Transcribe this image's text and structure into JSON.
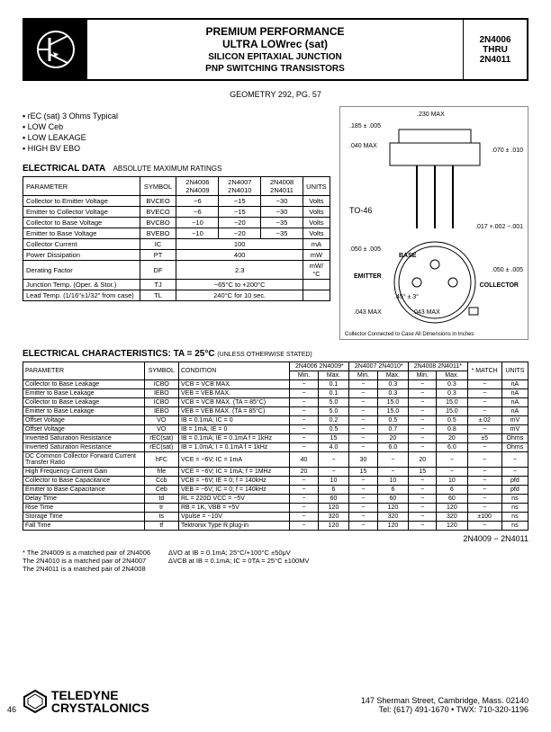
{
  "header": {
    "title_l1": "PREMIUM PERFORMANCE",
    "title_l2": "ULTRA LOWrec (sat)",
    "title_l3a": "SILICON EPITAXIAL JUNCTION",
    "title_l3b": "PNP SWITCHING TRANSISTORS",
    "part_from": "2N4006",
    "part_thru": "THRU",
    "part_to": "2N4011"
  },
  "geometry": "GEOMETRY 292, PG. 57",
  "bullets": [
    "rEC (sat) 3 Ohms Typical",
    "LOW Ceb",
    "LOW LEAKAGE",
    "HIGH BV EBO"
  ],
  "max_ratings": {
    "title": "ELECTRICAL DATA",
    "subtitle": "ABSOLUTE MAXIMUM RATINGS",
    "cols": [
      "PARAMETER",
      "SYMBOL",
      "2N4006 2N4009",
      "2N4007 2N4010",
      "2N4008 2N4011",
      "UNITS"
    ],
    "rows": [
      [
        "Collector to Emitter Voltage",
        "BVCEO",
        "−6",
        "−15",
        "−30",
        "Volts"
      ],
      [
        "Emitter to Collector Voltage",
        "BVECO",
        "−6",
        "−15",
        "−30",
        "Volts"
      ],
      [
        "Collector to Base Voltage",
        "BVCBO",
        "−10",
        "−20",
        "−35",
        "Volts"
      ],
      [
        "Emitter to Base Voltage",
        "BVEBO",
        "−10",
        "−20",
        "−35",
        "Volts"
      ],
      [
        "Collector Current",
        "IC",
        "100",
        "",
        "",
        "mA"
      ],
      [
        "Power Dissipation",
        "PT",
        "400",
        "",
        "",
        "mW"
      ],
      [
        "Derating Factor",
        "DF",
        "2.3",
        "",
        "",
        "mW/°C"
      ],
      [
        "Junction Temp. (Oper. & Stor.)",
        "TJ",
        "−65°C to +200°C",
        "",
        "",
        ""
      ],
      [
        "Lead Temp. (1/16\"±1/32\" from case)",
        "TL",
        "240°C for 10 sec.",
        "",
        "",
        ""
      ]
    ]
  },
  "package": {
    "label": "TO-46",
    "dims": [
      ".230 MAX",
      ".185 ± .005",
      ".040 MAX",
      ".070 ± .010",
      ".017 +.002 −.001",
      ".050 ± .005",
      "BASE",
      "EMITTER",
      "COLLECTOR",
      ".043 MAX",
      ".043 MAX",
      ".45° ± 3°",
      ".050 ± .005"
    ],
    "note": "Collector Connected to Case    All Dimensions in Inches"
  },
  "characteristics": {
    "title": "ELECTRICAL CHARACTERISTICS: TA = 25°C",
    "title_note": "(UNLESS OTHERWISE STATED)",
    "group_cols": [
      "2N4006 2N4009*",
      "2N4007 2N4010*",
      "2N4008 2N4011*"
    ],
    "head": [
      "PARAMETER",
      "SYMBOL",
      "CONDITION",
      "Min.",
      "Max.",
      "Min.",
      "Max.",
      "Min.",
      "Max.",
      "* MATCH",
      "UNITS"
    ],
    "rows": [
      [
        "Collector to Base Leakage",
        "ICBO",
        "VCB = VCB MAX.",
        "−",
        "0.1",
        "−",
        "0.3",
        "−",
        "0.3",
        "−",
        "nA"
      ],
      [
        "Emitter to Base Leakage",
        "IEBO",
        "VEB = VEB MAX.",
        "−",
        "0.1",
        "−",
        "0.3",
        "−",
        "0.3",
        "−",
        "nA"
      ],
      [
        "Collector to Base Leakage",
        "ICBO",
        "VCB = VCB MAX. (TA = 85°C)",
        "−",
        "5.0",
        "−",
        "15.0",
        "−",
        "15.0",
        "−",
        "nA"
      ],
      [
        "Emitter to Base Leakage",
        "IEBO",
        "VEB = VEB MAX. (TA = 85°C)",
        "−",
        "5.0",
        "−",
        "15.0",
        "−",
        "15.0",
        "−",
        "nA"
      ],
      [
        "Offset Voltage",
        "VO",
        "IB = 0.1mA; IC = 0",
        "−",
        "0.2",
        "−",
        "0.5",
        "−",
        "0.5",
        "±.02",
        "mV"
      ],
      [
        "Offset Voltage",
        "VO",
        "IB = 1mA; IE = 0",
        "−",
        "0.5",
        "−",
        "0.7",
        "−",
        "0.8",
        "−",
        "mV"
      ],
      [
        "Inverted Saturation Resistance",
        "rEC(sat)",
        "IB = 0.1mA; IE = 0.1mA f = 1kHz",
        "−",
        "15",
        "−",
        "20",
        "−",
        "20",
        "±5",
        "Ohms"
      ],
      [
        "Inverted Saturation Resistance",
        "rEC(sat)",
        "IB = 1.0mA; I = 0.1mA f = 1kHz",
        "−",
        "4.0",
        "−",
        "6.0",
        "−",
        "6.0",
        "−",
        "Ohms"
      ],
      [
        "DC Common Collector Forward Current Transfer Ratio",
        "hFC",
        "VCE = −6V; IC = 1mA",
        "40",
        "−",
        "30",
        "−",
        "20",
        "−",
        "−",
        "−"
      ],
      [
        "High Frequency Current Gain",
        "hfe",
        "VCE = −6V; IC = 1mA; f = 1MHz",
        "20",
        "−",
        "15",
        "−",
        "15",
        "−",
        "−",
        "−"
      ],
      [
        "Collector to Base Capacitance",
        "Ccb",
        "VCB = −6V; IE = 0; f = 140kHz",
        "−",
        "10",
        "−",
        "10",
        "−",
        "10",
        "−",
        "pfd"
      ],
      [
        "Emitter to Base Capacitance",
        "Ceb",
        "VEB = −6V; IC = 0; f = 140kHz",
        "−",
        "6",
        "−",
        "6",
        "−",
        "6",
        "−",
        "pfd"
      ],
      [
        "Delay Time",
        "td",
        "RL = 220Ω    VCC = −5V",
        "−",
        "60",
        "−",
        "60",
        "−",
        "60",
        "−",
        "ns"
      ],
      [
        "Rise Time",
        "tr",
        "RB = 1K,      VBB = +5V",
        "−",
        "120",
        "−",
        "120",
        "−",
        "120",
        "−",
        "ns"
      ],
      [
        "Storage Time",
        "ts",
        "Vpulse = −10V",
        "−",
        "320",
        "−",
        "320",
        "−",
        "320",
        "±100",
        "ns"
      ],
      [
        "Fall Time",
        "tf",
        "Tektronix Type R plug-in",
        "−",
        "120",
        "−",
        "120",
        "−",
        "120",
        "−",
        "ns"
      ]
    ]
  },
  "footnotes": {
    "right_title": "2N4009 − 2N4011",
    "left": [
      "* The 2N4009 is a matched pair of 2N4006",
      "The 2N4010 is a matched pair of 2N4007",
      "The 2N4011 is a matched pair of 2N4008"
    ],
    "right": [
      "ΔVO at IB = 0.1mA; 25°C/+100°C ±50μV",
      "ΔVCB at IB = 0.1mA; IC = 0TA = 25°C ±100MV"
    ]
  },
  "footer": {
    "brand1": "TELEDYNE",
    "brand2": "CRYSTALONICS",
    "addr1": "147 Sherman Street, Cambridge, Mass. 02140",
    "addr2": "Tel: (617) 491-1670 • TWX: 710-320-1196"
  },
  "page": "46"
}
